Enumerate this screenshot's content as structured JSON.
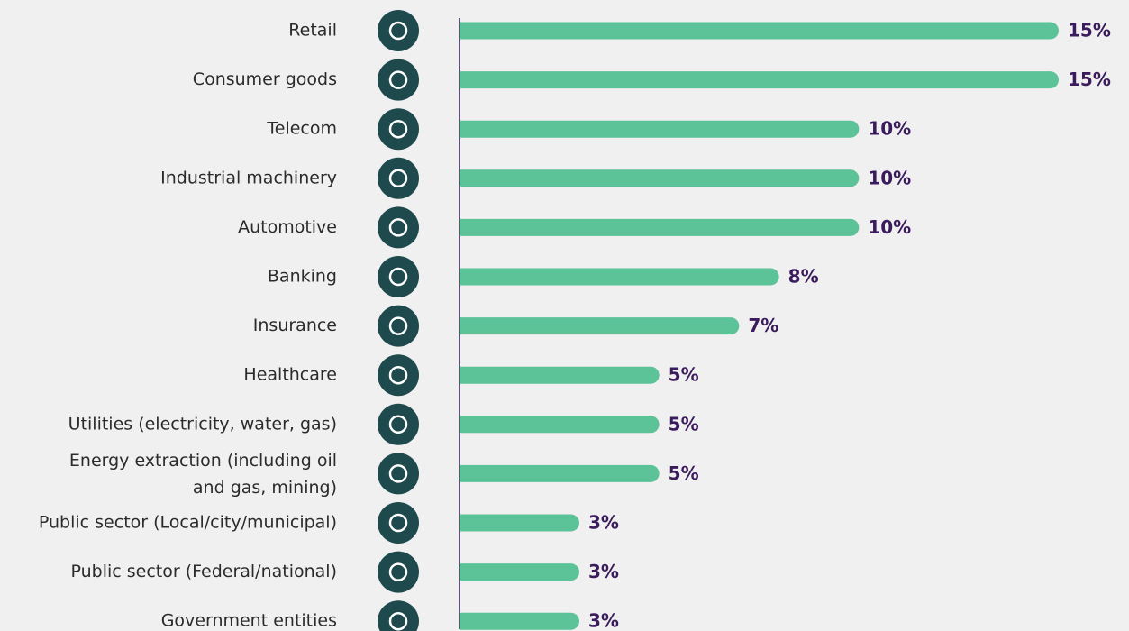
{
  "chart_data": {
    "type": "bar",
    "orientation": "horizontal",
    "categories": [
      "Retail",
      "Consumer goods",
      "Telecom",
      "Industrial machinery",
      "Automotive",
      "Banking",
      "Insurance",
      "Healthcare",
      "Utilities (electricity, water, gas)",
      [
        "Energy extraction (including oil",
        "and gas, mining)"
      ],
      "Public sector (Local/city/municipal)",
      "Public sector (Federal/national)",
      "Government entities"
    ],
    "values": [
      15,
      15,
      10,
      10,
      10,
      8,
      7,
      5,
      5,
      5,
      3,
      3,
      3
    ],
    "value_labels": [
      "15%",
      "15%",
      "10%",
      "10%",
      "10%",
      "8%",
      "7%",
      "5%",
      "5%",
      "5%",
      "3%",
      "3%",
      "3%"
    ],
    "color": "#5cc298"
  }
}
